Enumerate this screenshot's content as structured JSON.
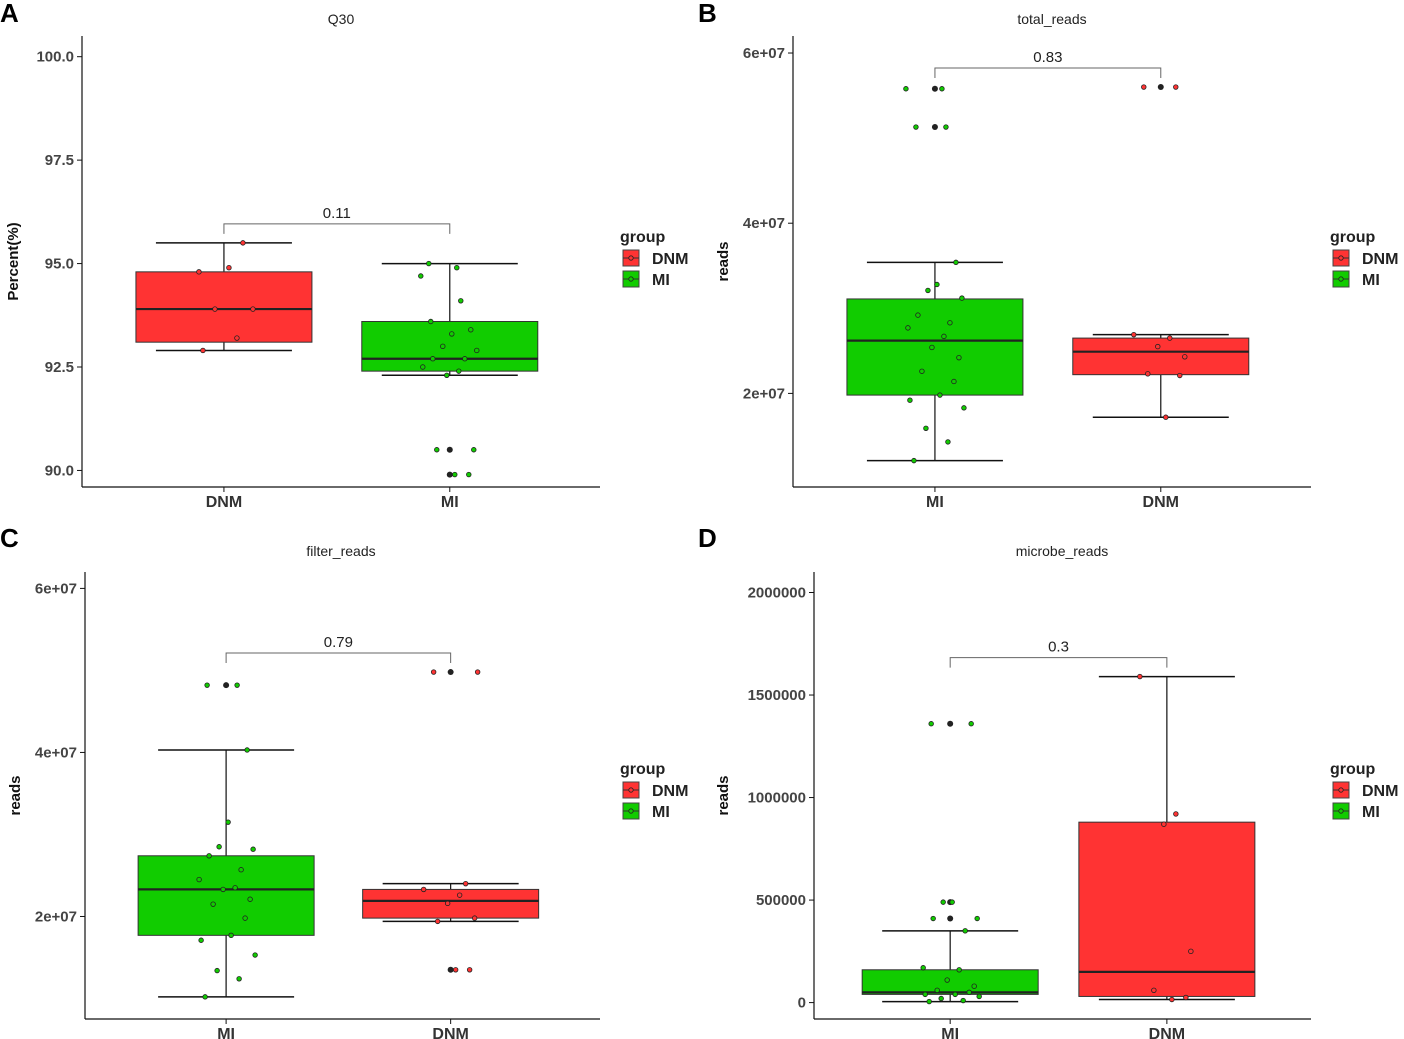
{
  "colors": {
    "DNM": "#ff3333",
    "MI": "#11cc00",
    "axis": "#111111",
    "bracket": "#666666"
  },
  "legend": {
    "title": "group",
    "items": [
      "DNM",
      "MI"
    ]
  },
  "chart_data": [
    {
      "panel_label": "A",
      "type": "box",
      "title": "Q30",
      "ylabel": "Percent(%)",
      "xlabel": "",
      "ylim": [
        89.6,
        100.5
      ],
      "yticks": [
        90,
        92.5,
        95,
        97.5,
        100
      ],
      "ytick_labels": [
        "90.0",
        "92.5",
        "95.0",
        "97.5",
        "100.0"
      ],
      "categories": [
        "DNM",
        "MI"
      ],
      "pvalue": "0.11",
      "boxes": [
        {
          "group": "DNM",
          "q1": 93.1,
          "median": 93.9,
          "q3": 94.8,
          "whisker_low": 92.9,
          "whisker_high": 95.5,
          "outliers": [],
          "points": [
            92.9,
            93.2,
            93.9,
            93.9,
            94.8,
            94.9,
            95.5
          ]
        },
        {
          "group": "MI",
          "q1": 92.4,
          "median": 92.7,
          "q3": 93.6,
          "whisker_low": 92.3,
          "whisker_high": 95.0,
          "outliers": [
            90.5,
            89.9
          ],
          "points": [
            89.9,
            89.9,
            90.5,
            90.5,
            92.3,
            92.4,
            92.5,
            92.7,
            92.7,
            92.9,
            93.0,
            93.3,
            93.4,
            93.6,
            94.1,
            94.7,
            94.9,
            95.0
          ]
        }
      ]
    },
    {
      "panel_label": "B",
      "type": "box",
      "title": "total_reads",
      "ylabel": "reads",
      "xlabel": "",
      "ylim": [
        9000000,
        62000000
      ],
      "yticks": [
        20000000,
        40000000,
        60000000
      ],
      "ytick_labels": [
        "2e+07",
        "4e+07",
        "6e+07"
      ],
      "categories": [
        "MI",
        "DNM"
      ],
      "pvalue": "0.83",
      "boxes": [
        {
          "group": "MI",
          "q1": 19800000,
          "median": 26200000,
          "q3": 31100000,
          "whisker_low": 12100000,
          "whisker_high": 35400000,
          "outliers": [
            55800000,
            51300000
          ],
          "points": [
            12100000,
            14300000,
            15900000,
            18300000,
            19200000,
            19800000,
            21400000,
            22600000,
            24200000,
            25400000,
            26700000,
            27700000,
            28300000,
            29200000,
            31200000,
            32100000,
            32800000,
            35400000,
            51300000,
            51300000,
            55800000,
            55800000
          ]
        },
        {
          "group": "DNM",
          "q1": 22200000,
          "median": 24900000,
          "q3": 26500000,
          "whisker_low": 17200000,
          "whisker_high": 26900000,
          "outliers": [
            56000000
          ],
          "points": [
            17200000,
            22100000,
            22300000,
            24300000,
            25500000,
            26500000,
            26900000,
            56000000,
            56000000
          ]
        }
      ]
    },
    {
      "panel_label": "C",
      "type": "box",
      "title": "filter_reads",
      "ylabel": "reads",
      "xlabel": "",
      "ylim": [
        7500000,
        62000000
      ],
      "yticks": [
        20000000,
        40000000,
        60000000
      ],
      "ytick_labels": [
        "2e+07",
        "4e+07",
        "6e+07"
      ],
      "categories": [
        "MI",
        "DNM"
      ],
      "pvalue": "0.79",
      "boxes": [
        {
          "group": "MI",
          "q1": 17700000,
          "median": 23300000,
          "q3": 27400000,
          "whisker_low": 10200000,
          "whisker_high": 40300000,
          "outliers": [
            48200000
          ],
          "points": [
            10200000,
            12400000,
            13400000,
            15300000,
            17100000,
            17700000,
            19800000,
            21500000,
            22100000,
            23300000,
            23500000,
            24500000,
            25700000,
            27400000,
            28200000,
            28500000,
            31500000,
            40300000,
            48200000,
            48200000
          ]
        },
        {
          "group": "DNM",
          "q1": 19800000,
          "median": 21900000,
          "q3": 23300000,
          "whisker_low": 19400000,
          "whisker_high": 24000000,
          "outliers": [
            13500000,
            49800000
          ],
          "points": [
            13500000,
            13500000,
            19400000,
            19800000,
            21600000,
            22600000,
            23300000,
            24000000,
            49800000,
            49800000
          ]
        }
      ]
    },
    {
      "panel_label": "D",
      "type": "box",
      "title": "microbe_reads",
      "ylabel": "reads",
      "xlabel": "",
      "ylim": [
        -80000,
        2100000
      ],
      "yticks": [
        0,
        500000,
        1000000,
        1500000,
        2000000
      ],
      "ytick_labels": [
        "0",
        "500000",
        "1000000",
        "1500000",
        "2000000"
      ],
      "categories": [
        "MI",
        "DNM"
      ],
      "pvalue": "0.3",
      "boxes": [
        {
          "group": "MI",
          "q1": 40000,
          "median": 50000,
          "q3": 160000,
          "whisker_low": 5000,
          "whisker_high": 350000,
          "outliers": [
            1360000,
            490000,
            410000
          ],
          "points": [
            5000,
            10000,
            20000,
            30000,
            40000,
            40000,
            50000,
            60000,
            80000,
            110000,
            160000,
            170000,
            350000,
            410000,
            410000,
            490000,
            490000,
            1360000,
            1360000
          ]
        },
        {
          "group": "DNM",
          "q1": 30000,
          "median": 150000,
          "q3": 880000,
          "whisker_low": 15000,
          "whisker_high": 1590000,
          "outliers": [],
          "points": [
            15000,
            25000,
            60000,
            250000,
            870000,
            920000,
            1590000
          ]
        }
      ]
    }
  ]
}
